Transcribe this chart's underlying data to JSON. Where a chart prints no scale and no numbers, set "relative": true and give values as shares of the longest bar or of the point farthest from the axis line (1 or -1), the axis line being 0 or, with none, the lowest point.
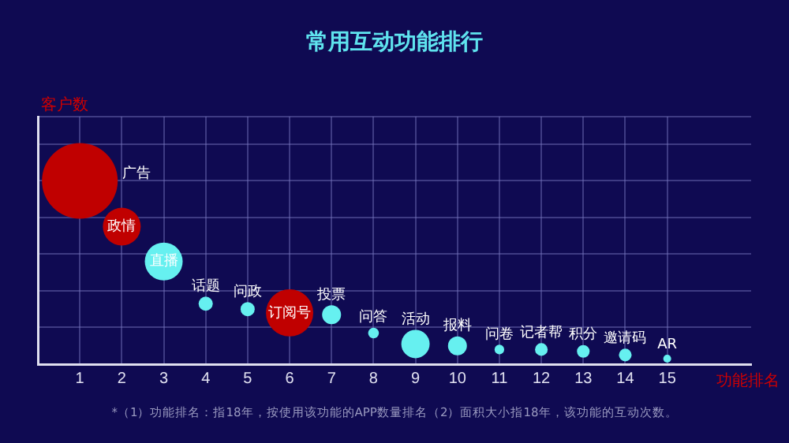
{
  "chart_data": {
    "type": "bubble",
    "title": "常用互动功能排行",
    "xlabel": "功能排名",
    "ylabel": "客户数",
    "relative": true,
    "x": [
      1,
      2,
      3,
      4,
      5,
      6,
      7,
      8,
      9,
      10,
      11,
      12,
      13,
      14,
      15
    ],
    "values": [
      1,
      0.75,
      0.56,
      0.33,
      0.3,
      0.28,
      0.27,
      0.17,
      0.11,
      0.1,
      0.08,
      0.08,
      0.07,
      0.05,
      0.03
    ],
    "sizes": [
      1,
      0.25,
      0.25,
      0.035,
      0.035,
      0.39,
      0.0625,
      0.02,
      0.14,
      0.0625,
      0.016,
      0.028,
      0.028,
      0.028,
      0.011
    ],
    "colors": [
      "#c00000",
      "#c00000",
      "#66f0f0",
      "#66f0f0",
      "#66f0f0",
      "#c00000",
      "#66f0f0",
      "#66f0f0",
      "#66f0f0",
      "#66f0f0",
      "#66f0f0",
      "#66f0f0",
      "#66f0f0",
      "#66f0f0",
      "#66f0f0"
    ],
    "xlim": [
      0,
      17
    ],
    "xticks": [
      1,
      2,
      3,
      4,
      5,
      6,
      7,
      8,
      9,
      10,
      11,
      12,
      13,
      14,
      15
    ],
    "grid": true,
    "legend": false,
    "annotations": [
      {
        "text": "广告",
        "x": 1,
        "y": 1
      },
      {
        "text": "政情",
        "x": 2,
        "y": 0.75
      },
      {
        "text": "直播",
        "x": 3,
        "y": 0.56
      },
      {
        "text": "话题",
        "x": 4,
        "y": 0.33
      },
      {
        "text": "问政",
        "x": 5,
        "y": 0.3
      },
      {
        "text": "订阅号",
        "x": 6,
        "y": 0.28
      },
      {
        "text": "投票",
        "x": 7,
        "y": 0.27
      },
      {
        "text": "问答",
        "x": 8,
        "y": 0.17
      },
      {
        "text": "活动",
        "x": 9,
        "y": 0.11
      },
      {
        "text": "报料",
        "x": 10,
        "y": 0.1
      },
      {
        "text": "问卷",
        "x": 11,
        "y": 0.08
      },
      {
        "text": "记者帮",
        "x": 12,
        "y": 0.08
      },
      {
        "text": "积分",
        "x": 13,
        "y": 0.07
      },
      {
        "text": "邀请码",
        "x": 14,
        "y": 0.05
      },
      {
        "text": "AR",
        "x": 15,
        "y": 0.03
      },
      "*（1）功能排名：指18年，按使用该功能的APP数量排名（2）面积大小指18年，该功能的互动次数。"
    ]
  }
}
